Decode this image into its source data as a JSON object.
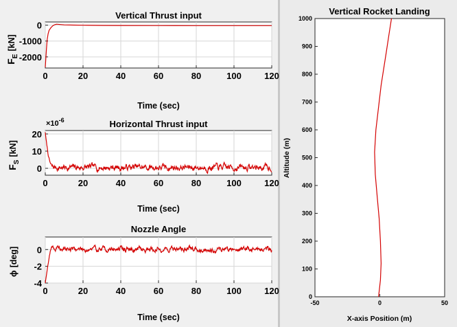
{
  "chart_data": [
    {
      "type": "line",
      "title": "Vertical Thrust input",
      "xlabel": "Time (sec)",
      "ylabel_main": "F",
      "ylabel_sub": "E",
      "ylabel_unit": "[kN]",
      "xlim": [
        0,
        120
      ],
      "ylim": [
        -2700,
        200
      ],
      "xticks": [
        0,
        20,
        40,
        60,
        80,
        100,
        120
      ],
      "yticks": [
        -2000,
        -1000,
        0
      ],
      "grid": true,
      "series": [
        {
          "color": "#d40000",
          "x": [
            0,
            0.3,
            0.6,
            1,
            1.5,
            2,
            3,
            4,
            5,
            6,
            8,
            10,
            15,
            20,
            30,
            40,
            60,
            80,
            100,
            120
          ],
          "y": [
            -2650,
            -2100,
            -1500,
            -900,
            -550,
            -330,
            -150,
            -40,
            30,
            60,
            40,
            20,
            5,
            -5,
            -15,
            -20,
            -25,
            -28,
            -30,
            -30
          ]
        }
      ]
    },
    {
      "type": "line",
      "title": "Horizontal Thrust input",
      "xlabel": "Time (sec)",
      "ylabel_main": "F",
      "ylabel_sub": "S",
      "ylabel_unit": "[kN]",
      "exponent_base": "×10",
      "exponent_power": "-6",
      "xlim": [
        0,
        120
      ],
      "ylim": [
        -4,
        22
      ],
      "xticks": [
        0,
        20,
        40,
        60,
        80,
        100,
        120
      ],
      "yticks": [
        0,
        10,
        20
      ],
      "grid": true,
      "noise": {
        "seed": 7,
        "amplitude": 2.6,
        "base": 0.5,
        "start_value": 21,
        "settle_time": 4
      },
      "series": [
        {
          "color": "#d40000"
        }
      ]
    },
    {
      "type": "line",
      "title": "Nozzle Angle",
      "xlabel": "Time (sec)",
      "ylabel_main": "ϕ",
      "ylabel_unit": "[deg]",
      "xlim": [
        0,
        120
      ],
      "ylim": [
        -4,
        1.5
      ],
      "xticks": [
        0,
        20,
        40,
        60,
        80,
        100,
        120
      ],
      "yticks": [
        -4,
        -2,
        0
      ],
      "grid": true,
      "noise": {
        "seed": 19,
        "amplitude": 0.45,
        "base": 0.05,
        "start_value": -4,
        "overshoot": 1.2,
        "settle_time": 5
      },
      "series": [
        {
          "color": "#d40000"
        }
      ]
    },
    {
      "type": "line",
      "title": "Vertical Rocket Landing",
      "xlabel": "X-axis Position (m)",
      "ylabel": "Altitude (m)",
      "xlim": [
        -50,
        50
      ],
      "ylim": [
        0,
        1000
      ],
      "xticks": [
        -50,
        0,
        50
      ],
      "yticks": [
        0,
        100,
        200,
        300,
        400,
        500,
        600,
        700,
        800,
        900,
        1000
      ],
      "grid": false,
      "series": [
        {
          "color": "#d40000",
          "x": [
            -1,
            -0.5,
            0.5,
            1,
            0.5,
            -0.5,
            -2,
            -3.5,
            -4,
            -3,
            -1,
            1,
            3,
            5,
            7,
            9
          ],
          "y": [
            0,
            20,
            60,
            120,
            200,
            280,
            360,
            440,
            520,
            600,
            680,
            760,
            820,
            880,
            940,
            1000
          ]
        }
      ]
    }
  ]
}
